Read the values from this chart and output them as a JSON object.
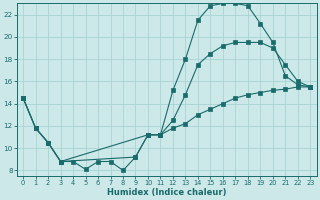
{
  "xlabel": "Humidex (Indice chaleur)",
  "background_color": "#cce8e8",
  "grid_color": "#a8d4d4",
  "line_color": "#1a6b6b",
  "xlim": [
    -0.5,
    23.5
  ],
  "ylim": [
    7.5,
    23
  ],
  "yticks": [
    8,
    10,
    12,
    14,
    16,
    18,
    20,
    22
  ],
  "xticks": [
    0,
    1,
    2,
    3,
    4,
    5,
    6,
    7,
    8,
    9,
    10,
    11,
    12,
    13,
    14,
    15,
    16,
    17,
    18,
    19,
    20,
    21,
    22,
    23
  ],
  "line1_x": [
    0,
    1,
    2,
    3,
    4,
    5,
    6,
    7,
    8,
    9,
    10,
    11,
    12,
    13,
    14,
    15,
    16,
    17,
    18,
    19,
    20,
    21,
    22,
    23
  ],
  "line1_y": [
    14.5,
    11.8,
    10.5,
    8.8,
    8.8,
    8.1,
    8.8,
    8.8,
    8.0,
    9.2,
    11.2,
    11.2,
    15.2,
    18.0,
    21.5,
    22.8,
    23.0,
    23.0,
    22.8,
    21.2,
    19.5,
    16.5,
    15.7,
    15.5
  ],
  "line2_x": [
    0,
    1,
    2,
    3,
    10,
    11,
    12,
    13,
    14,
    15,
    16,
    17,
    18,
    19,
    20,
    21,
    22,
    23
  ],
  "line2_y": [
    14.5,
    11.8,
    10.5,
    8.8,
    11.2,
    11.2,
    12.5,
    14.8,
    17.5,
    18.5,
    19.2,
    19.5,
    19.5,
    19.5,
    19.0,
    17.5,
    16.0,
    15.5
  ],
  "line3_x": [
    0,
    1,
    2,
    3,
    9,
    10,
    11,
    12,
    13,
    14,
    15,
    16,
    17,
    18,
    19,
    20,
    21,
    22,
    23
  ],
  "line3_y": [
    14.5,
    11.8,
    10.5,
    8.8,
    9.2,
    11.2,
    11.2,
    11.8,
    12.2,
    13.0,
    13.5,
    14.0,
    14.5,
    14.8,
    15.0,
    15.2,
    15.3,
    15.5,
    15.5
  ]
}
